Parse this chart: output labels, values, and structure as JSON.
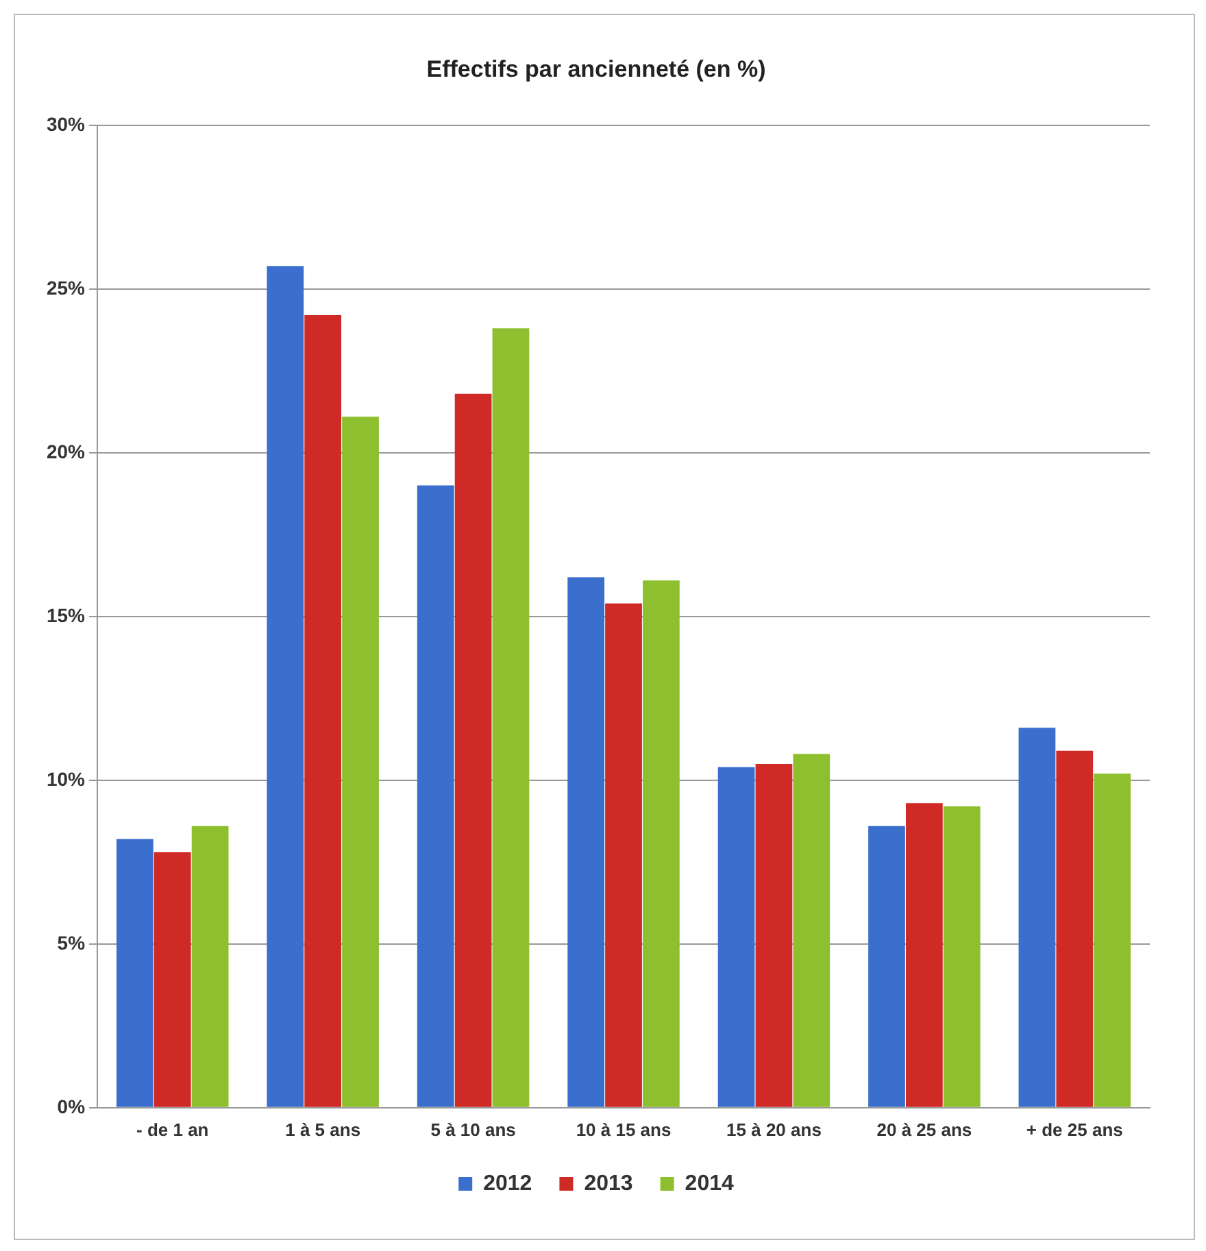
{
  "chart_data": {
    "type": "bar",
    "title": "Effectifs par ancienneté (en %)",
    "categories": [
      "- de 1 an",
      "1 à 5 ans",
      "5 à 10 ans",
      "10 à 15 ans",
      "15 à 20 ans",
      "20 à 25 ans",
      "+ de 25 ans"
    ],
    "series": [
      {
        "name": "2012",
        "color": "#3b6fce",
        "values": [
          8.2,
          25.7,
          19.0,
          16.2,
          10.4,
          8.6,
          11.6
        ]
      },
      {
        "name": "2013",
        "color": "#d02a27",
        "values": [
          7.8,
          24.2,
          21.8,
          15.4,
          10.5,
          9.3,
          10.9
        ]
      },
      {
        "name": "2014",
        "color": "#8dbf2e",
        "values": [
          8.6,
          21.1,
          23.8,
          16.1,
          10.8,
          9.2,
          10.2
        ]
      }
    ],
    "ylim": [
      0,
      30
    ],
    "yticks": [
      {
        "value": 0,
        "label": "0%"
      },
      {
        "value": 5,
        "label": "5%"
      },
      {
        "value": 10,
        "label": "10%"
      },
      {
        "value": 15,
        "label": "15%"
      },
      {
        "value": 20,
        "label": "20%"
      },
      {
        "value": 25,
        "label": "25%"
      },
      {
        "value": 30,
        "label": "30%"
      }
    ],
    "grid": "y",
    "legend": "bottom"
  }
}
